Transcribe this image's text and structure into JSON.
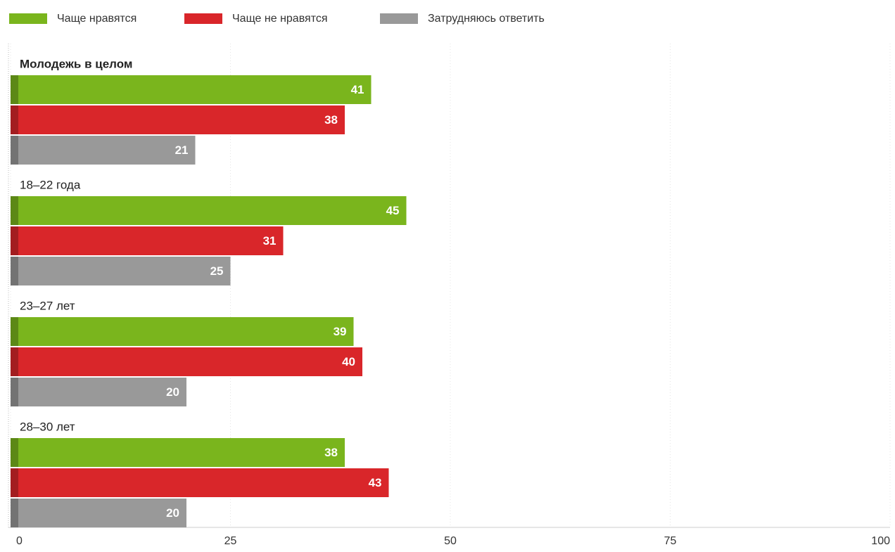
{
  "chart_data": {
    "type": "hbar",
    "categories": [
      "Молодежь в целом",
      "18–22 года",
      "23–27 лет",
      "28–30 лет"
    ],
    "series": [
      {
        "name": "Чаще нравятся",
        "color": "#7ab51d",
        "values": [
          41,
          45,
          39,
          38
        ]
      },
      {
        "name": "Чаще не нравятся",
        "color": "#d9262a",
        "values": [
          38,
          31,
          40,
          43
        ]
      },
      {
        "name": "Затрудняюсь ответить",
        "color": "#999999",
        "values": [
          21,
          25,
          20,
          20
        ]
      }
    ],
    "xlim": [
      0,
      100
    ],
    "xticks": [
      0,
      25,
      50,
      75,
      100
    ],
    "legend": "top-left"
  }
}
